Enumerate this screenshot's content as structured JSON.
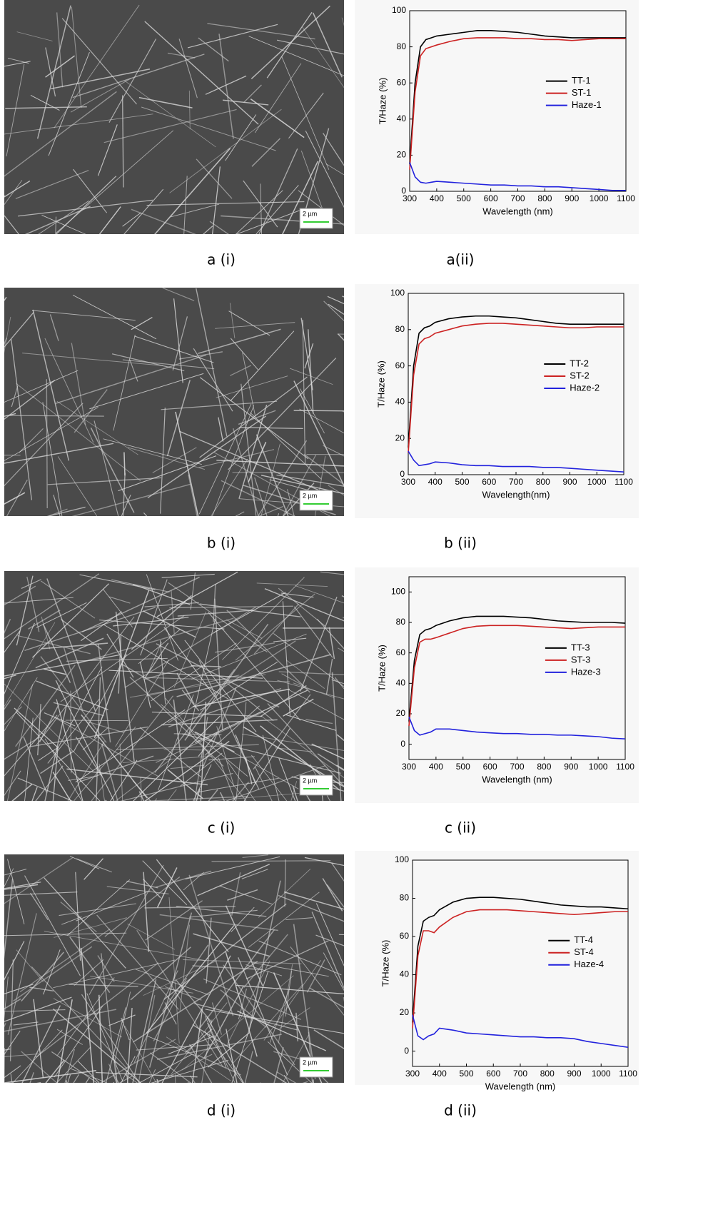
{
  "panels": [
    {
      "image_caption": "a (i)",
      "chart_caption": "a(ii)",
      "scale_bar": "2 µm"
    },
    {
      "image_caption": "b (i)",
      "chart_caption": "b (ii)",
      "scale_bar": "2 µm"
    },
    {
      "image_caption": "c (i)",
      "chart_caption": "c (ii)",
      "scale_bar": "2 µm"
    },
    {
      "image_caption": "d (i)",
      "chart_caption": "d (ii)",
      "scale_bar": "2 µm"
    }
  ],
  "chart_data": [
    {
      "type": "line",
      "x_label": "Wavelength (nm)",
      "y_label": "T/Haze (%)",
      "x": [
        300,
        320,
        340,
        360,
        380,
        400,
        450,
        500,
        550,
        600,
        650,
        700,
        750,
        800,
        850,
        900,
        950,
        1000,
        1050,
        1100
      ],
      "xlim": [
        300,
        1100
      ],
      "xticks": [
        300,
        400,
        500,
        600,
        700,
        800,
        900,
        1000,
        1100
      ],
      "ylim": [
        0,
        100
      ],
      "yticks": [
        0,
        20,
        40,
        60,
        80,
        100
      ],
      "legend": "right",
      "series": [
        {
          "name": "TT-1",
          "color": "#000000",
          "values": [
            15,
            60,
            80,
            84,
            85,
            86,
            87,
            88,
            89,
            89,
            88.5,
            88,
            87,
            86,
            85.5,
            85,
            85,
            85,
            85,
            85
          ]
        },
        {
          "name": "ST-1",
          "color": "#cc2222",
          "values": [
            12,
            55,
            75,
            79,
            80,
            81,
            83,
            84.5,
            85,
            85,
            85,
            84.5,
            84.5,
            84,
            84,
            83.5,
            84,
            84.5,
            84.5,
            84.5
          ]
        },
        {
          "name": "Haze-1",
          "color": "#2222dd",
          "values": [
            16,
            8,
            5,
            4.5,
            5,
            5.5,
            5,
            4.5,
            4,
            3.5,
            3.5,
            3,
            3,
            2.5,
            2.5,
            2,
            1.5,
            1,
            0.5,
            0.5
          ]
        }
      ]
    },
    {
      "type": "line",
      "x_label": "Wavelength(nm)",
      "y_label": "T/Haze (%)",
      "x": [
        300,
        320,
        340,
        360,
        380,
        400,
        450,
        500,
        550,
        600,
        650,
        700,
        750,
        800,
        850,
        900,
        950,
        1000,
        1050,
        1100
      ],
      "xlim": [
        300,
        1100
      ],
      "xticks": [
        300,
        400,
        500,
        600,
        700,
        800,
        900,
        1000,
        1100
      ],
      "ylim": [
        0,
        100
      ],
      "yticks": [
        0,
        20,
        40,
        60,
        80,
        100
      ],
      "legend": "right",
      "series": [
        {
          "name": "TT-2",
          "color": "#000000",
          "values": [
            15,
            60,
            78,
            81,
            82,
            84,
            86,
            87,
            87.5,
            87.5,
            87,
            86.5,
            85.5,
            84.5,
            83.5,
            83,
            83,
            83,
            83,
            83
          ]
        },
        {
          "name": "ST-2",
          "color": "#cc2222",
          "values": [
            12,
            55,
            72,
            75,
            76,
            78,
            80,
            82,
            83,
            83.5,
            83.5,
            83,
            82.5,
            82,
            81.5,
            81,
            81,
            81.5,
            81.5,
            81.5
          ]
        },
        {
          "name": "Haze-2",
          "color": "#2222dd",
          "values": [
            13,
            8,
            5,
            5.5,
            6,
            7,
            6.5,
            5.5,
            5,
            5,
            4.5,
            4.5,
            4.5,
            4,
            4,
            3.5,
            3,
            2.5,
            2,
            1.5
          ]
        }
      ]
    },
    {
      "type": "line",
      "x_label": "Wavelength (nm)",
      "y_label": "T/Haze (%)",
      "x": [
        300,
        320,
        340,
        360,
        380,
        400,
        450,
        500,
        550,
        600,
        650,
        700,
        750,
        800,
        850,
        900,
        950,
        1000,
        1050,
        1100
      ],
      "xlim": [
        300,
        1100
      ],
      "xticks": [
        300,
        400,
        500,
        600,
        700,
        800,
        900,
        1000,
        1100
      ],
      "ylim": [
        -10,
        110
      ],
      "yticks": [
        0,
        20,
        40,
        60,
        80,
        100
      ],
      "legend": "right",
      "series": [
        {
          "name": "TT-3",
          "color": "#000000",
          "values": [
            15,
            55,
            72,
            75,
            76,
            78,
            81,
            83,
            84,
            84,
            84,
            83.5,
            83,
            82,
            81,
            80.5,
            80,
            80,
            80,
            79.5
          ]
        },
        {
          "name": "ST-3",
          "color": "#cc2222",
          "values": [
            12,
            50,
            67,
            69,
            69,
            70,
            73,
            76,
            77.5,
            78,
            78,
            78,
            77.5,
            77,
            76.5,
            76,
            76.5,
            77,
            77,
            77
          ]
        },
        {
          "name": "Haze-3",
          "color": "#2222dd",
          "values": [
            18,
            9,
            6,
            7,
            8,
            10,
            10,
            9,
            8,
            7.5,
            7,
            7,
            6.5,
            6.5,
            6,
            6,
            5.5,
            5,
            4,
            3.5
          ]
        }
      ]
    },
    {
      "type": "line",
      "x_label": "Wavelength (nm)",
      "y_label": "T/Haze (%)",
      "x": [
        300,
        320,
        340,
        360,
        380,
        400,
        450,
        500,
        550,
        600,
        650,
        700,
        750,
        800,
        850,
        900,
        950,
        1000,
        1050,
        1100
      ],
      "xlim": [
        300,
        1100
      ],
      "xticks": [
        300,
        400,
        500,
        600,
        700,
        800,
        900,
        1000,
        1100
      ],
      "ylim": [
        -8,
        100
      ],
      "yticks": [
        0,
        20,
        40,
        60,
        80,
        100
      ],
      "legend": "right",
      "series": [
        {
          "name": "TT-4",
          "color": "#000000",
          "values": [
            15,
            55,
            68,
            70,
            71,
            74,
            78,
            80,
            80.5,
            80.5,
            80,
            79.5,
            78.5,
            77.5,
            76.5,
            76,
            75.5,
            75.5,
            75,
            74.5
          ]
        },
        {
          "name": "ST-4",
          "color": "#cc2222",
          "values": [
            12,
            50,
            63,
            63,
            62,
            65,
            70,
            73,
            74,
            74,
            74,
            73.5,
            73,
            72.5,
            72,
            71.5,
            72,
            72.5,
            73,
            73
          ]
        },
        {
          "name": "Haze-4",
          "color": "#2222dd",
          "values": [
            19,
            8,
            6,
            8,
            9,
            12,
            11,
            9.5,
            9,
            8.5,
            8,
            7.5,
            7.5,
            7,
            7,
            6.5,
            5,
            4,
            3,
            2
          ]
        }
      ]
    }
  ]
}
